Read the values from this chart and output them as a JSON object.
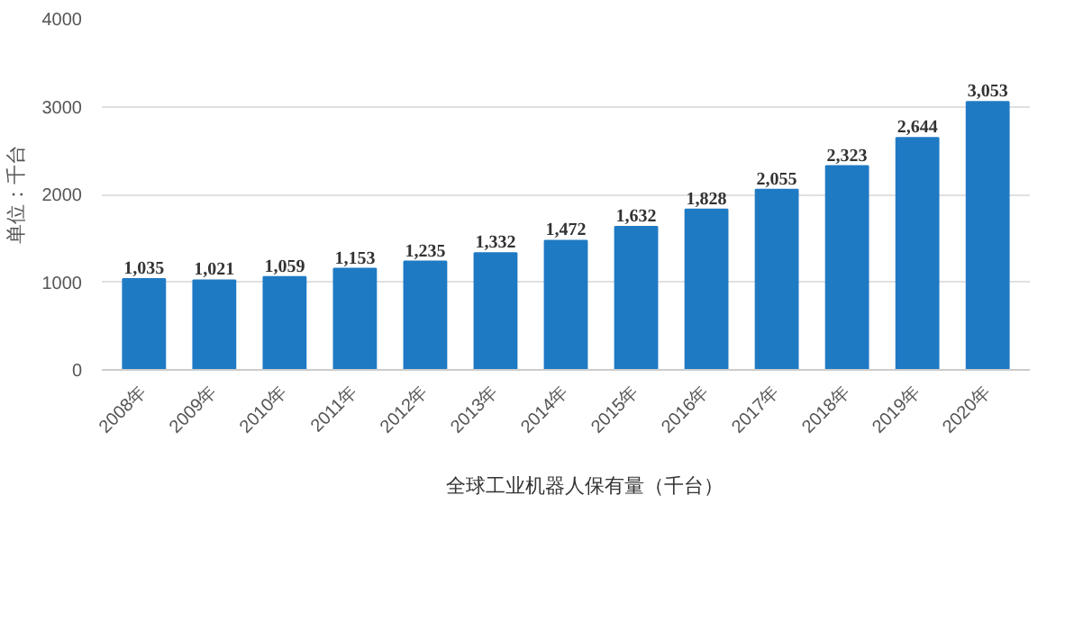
{
  "chart_data": {
    "type": "bar",
    "ylabel": "单位：千台",
    "categories": [
      "2008年",
      "2009年",
      "2010年",
      "2011年",
      "2012年",
      "2013年",
      "2014年",
      "2015年",
      "2016年",
      "2017年",
      "2018年",
      "2019年",
      "2020年"
    ],
    "series": [
      {
        "name": "全球工业机器人保有量（千台）",
        "color": "#1f7ac4",
        "values": [
          1035,
          1021,
          1059,
          1153,
          1235,
          1332,
          1472,
          1632,
          1828,
          2055,
          2323,
          2644,
          3053
        ]
      }
    ],
    "value_labels": [
      "1,035",
      "1,021",
      "1,059",
      "1,153",
      "1,235",
      "1,332",
      "1,472",
      "1,632",
      "1,828",
      "2,055",
      "2,323",
      "2,644",
      "3,053"
    ],
    "ylim": [
      0,
      4000
    ],
    "yticks": [
      0,
      1000,
      2000,
      3000,
      4000
    ],
    "grid": "y",
    "legend": "bottom"
  }
}
